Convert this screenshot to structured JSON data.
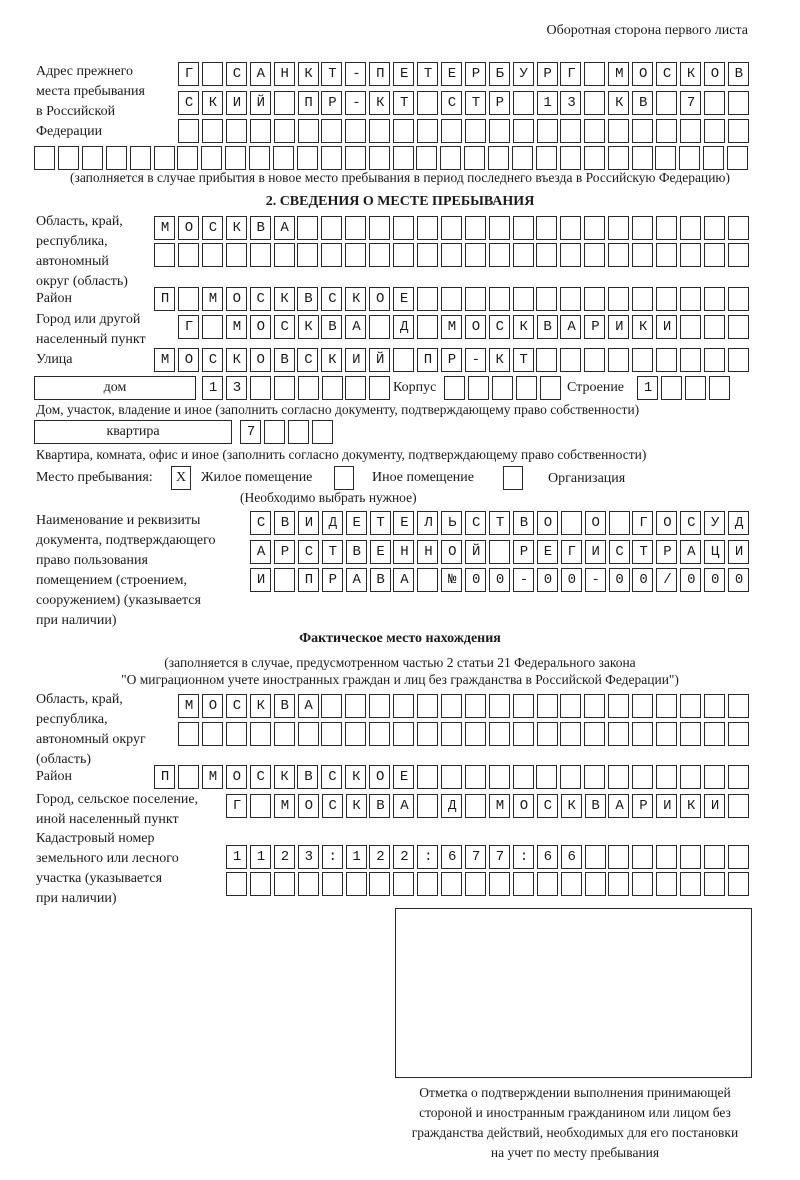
{
  "header": {
    "page_side": "Оборотная сторона первого листа"
  },
  "previous_address": {
    "label": [
      "Адрес прежнего",
      "места пребывания",
      "в Российской",
      "Федерации"
    ],
    "rows": [
      "Г САНКТ-ПЕТЕРБУРГ МОСКОВ",
      "СКИЙ ПР-КТ СТР 13 КВ 7",
      "",
      ""
    ],
    "note": "(заполняется в случае прибытия в новое место пребывания в период последнего въезда в Российскую Федерацию)"
  },
  "section2": {
    "title": "2. СВЕДЕНИЯ О МЕСТЕ ПРЕБЫВАНИЯ",
    "region": {
      "label": [
        "Область, край,",
        "республика,",
        "автономный",
        "округ (область)"
      ],
      "rows": [
        "МОСКВА",
        ""
      ]
    },
    "district": {
      "label": "Район",
      "value": "П МОСКВСКОЕ"
    },
    "city": {
      "label": [
        "Город или другой",
        "населенный пункт"
      ],
      "value": "Г МОСКВА Д МОСКВАРИКИ"
    },
    "street": {
      "label": "Улица",
      "value": "МОСКОВСКИЙ ПР-КТ"
    },
    "house": {
      "type": "дом",
      "value": "13",
      "korpus_label": "Корпус",
      "korpus_value": "",
      "building_label": "Строение",
      "building_value": "1",
      "caption": "Дом, участок, владение и иное (заполнить согласно документу, подтверждающему право собственности)"
    },
    "apartment": {
      "type": "квартира",
      "value": "7",
      "caption": "Квартира, комната, офис и иное (заполнить согласно документу, подтверждающему право собственности)"
    },
    "place": {
      "label": "Место пребывания:",
      "options": [
        {
          "label": "Жилое помещение",
          "mark": "X",
          "checked": true
        },
        {
          "label": "Иное помещение",
          "mark": "",
          "checked": false
        },
        {
          "label": "Организация",
          "mark": "",
          "checked": false
        }
      ],
      "hint": "(Необходимо выбрать нужное)"
    },
    "document": {
      "label": [
        "Наименование и реквизиты",
        "документа, подтверждающего",
        "право пользования",
        "помещением (строением,",
        "сооружением) (указывается",
        "при наличии)"
      ],
      "rows": [
        "СВИДЕТЕЛЬСТВО О ГОСУД",
        "АРСТВЕННОЙ РЕГИСТРАЦИ",
        "И ПРАВА №00-00-00/000"
      ]
    }
  },
  "actual_location": {
    "title": "Фактическое место нахождения",
    "note": [
      "(заполняется в случае, предусмотренном частью 2 статьи 21 Федерального закона",
      "\"О миграционном учете иностранных граждан и лиц без гражданства в Российской Федерации\")"
    ],
    "region": {
      "label": [
        "Область, край,",
        "республика,",
        "автономный округ",
        "(область)"
      ],
      "rows": [
        "МОСКВА",
        ""
      ]
    },
    "district": {
      "label": "Район",
      "value": "П МОСКВСКОЕ"
    },
    "city": {
      "label": [
        "Город, сельское поселение,",
        "иной населенный пункт"
      ],
      "value": "Г МОСКВА Д МОСКВАРИКИ"
    },
    "cadastral": {
      "label": [
        "Кадастровый номер",
        "земельного или лесного",
        "участка (указывается",
        "при наличии)"
      ],
      "rows": [
        "1123:122:677:66",
        ""
      ]
    }
  },
  "confirmation": {
    "caption": [
      "Отметка о подтверждении выполнения принимающей",
      "стороной и иностранным гражданином или лицом без",
      "гражданства действий, необходимых для его постановки",
      "на учет по месту пребывания"
    ]
  }
}
